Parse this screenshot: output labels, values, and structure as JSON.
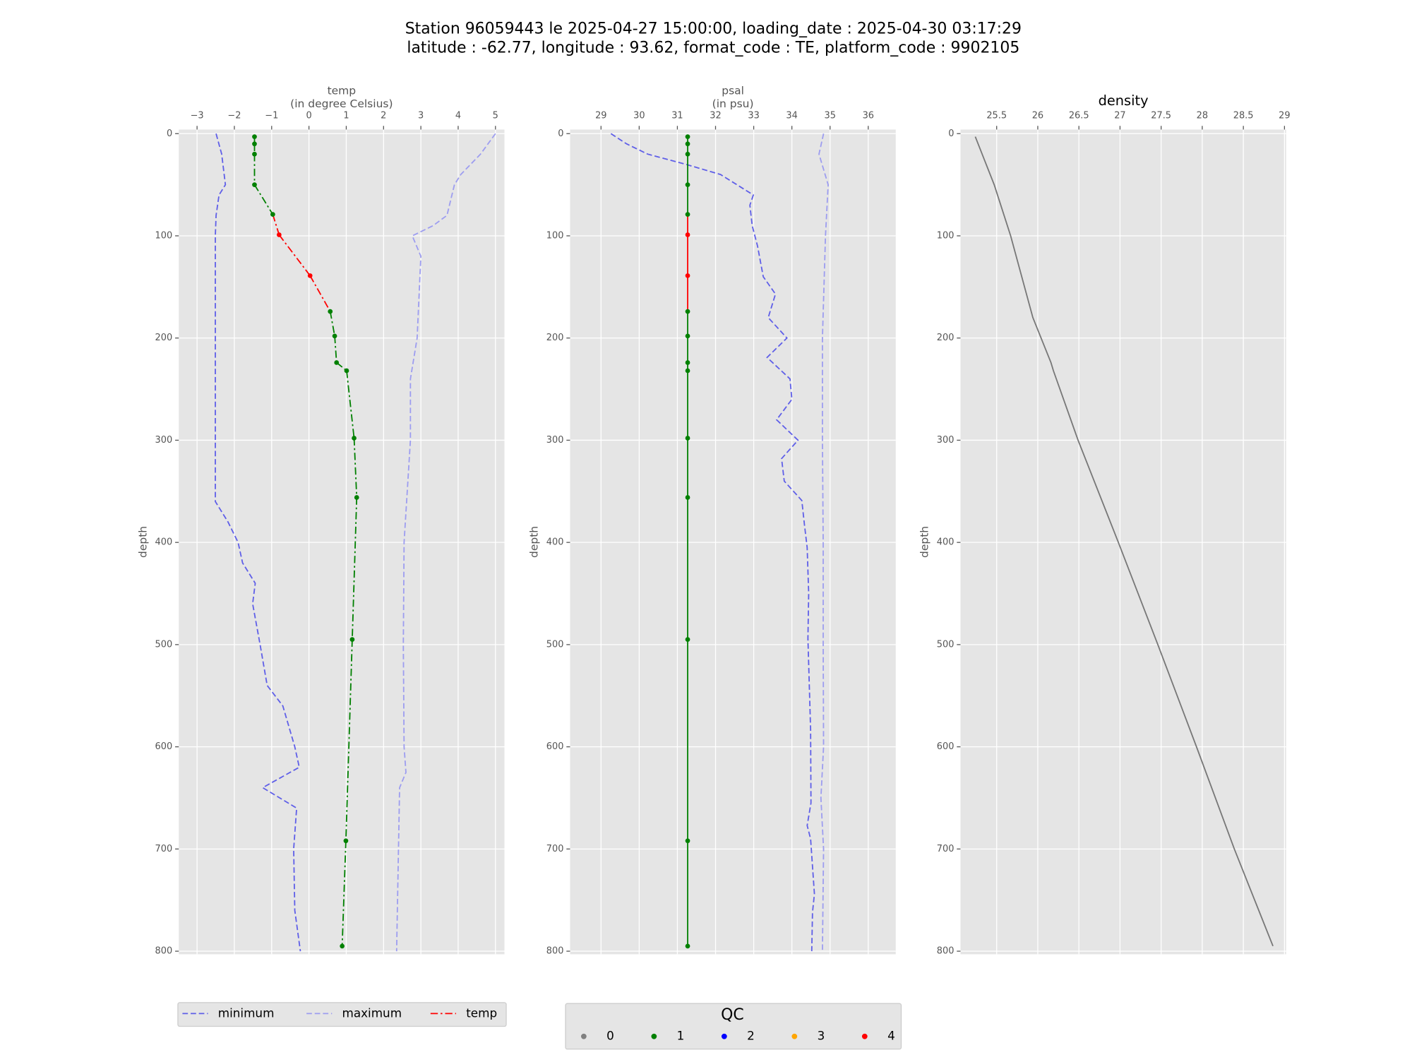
{
  "title": [
    "Station 96059443 le 2025-04-27 15:00:00, loading_date : 2025-04-30 03:17:29",
    "latitude : -62.77, longitude : 93.62, format_code : TE, platform_code : 9902105"
  ],
  "chart_data": [
    {
      "type": "profile",
      "xlabel": [
        "temp",
        "(in degree Celsius)"
      ],
      "ylabel": "depth",
      "xlim": [
        -3.49,
        5.24
      ],
      "xticks": [
        {
          "value": -3,
          "label": "−3"
        },
        {
          "value": -2,
          "label": "−2"
        },
        {
          "value": -1,
          "label": "−1"
        },
        0,
        1,
        2,
        3,
        4,
        5
      ],
      "ylim": [
        -4,
        803
      ],
      "yticks": [
        0,
        100,
        200,
        300,
        400,
        500,
        600,
        700,
        800
      ],
      "inverted_y": true,
      "grid": true,
      "legend": "below",
      "series": [
        {
          "name": "minimum",
          "color": "#5f5fe8",
          "style": "dashed",
          "depth": [
            0,
            20,
            50,
            60,
            80,
            100,
            200,
            300,
            360,
            380,
            400,
            420,
            440,
            460,
            500,
            540,
            560,
            600,
            620,
            640,
            660,
            700,
            760,
            800
          ],
          "values": [
            -2.49,
            -2.34,
            -2.24,
            -2.41,
            -2.49,
            -2.51,
            -2.51,
            -2.51,
            -2.51,
            -2.17,
            -1.9,
            -1.78,
            -1.44,
            -1.51,
            -1.31,
            -1.12,
            -0.7,
            -0.38,
            -0.26,
            -1.24,
            -0.33,
            -0.41,
            -0.38,
            -0.23
          ]
        },
        {
          "name": "maximum",
          "color": "#9d9df0",
          "style": "dashed",
          "depth": [
            0,
            20,
            40,
            50,
            80,
            90,
            100,
            120,
            200,
            240,
            300,
            400,
            500,
            600,
            625,
            640,
            700,
            800
          ],
          "values": [
            5.0,
            4.6,
            4.07,
            3.9,
            3.7,
            3.33,
            2.77,
            3.0,
            2.9,
            2.72,
            2.72,
            2.55,
            2.53,
            2.55,
            2.6,
            2.43,
            2.4,
            2.35
          ]
        },
        {
          "name": "temp",
          "color": "#ff0000",
          "style": "dashdot",
          "depth": [
            3,
            10,
            20,
            50,
            79,
            99,
            139,
            174,
            198,
            224,
            232,
            298,
            356,
            495,
            692,
            795
          ],
          "values": [
            -1.46,
            -1.46,
            -1.46,
            -1.46,
            -0.97,
            -0.8,
            0.03,
            0.57,
            0.69,
            0.74,
            1.01,
            1.21,
            1.28,
            1.16,
            0.99,
            0.89
          ],
          "qc": [
            1,
            1,
            1,
            1,
            1,
            4,
            4,
            1,
            1,
            1,
            1,
            1,
            1,
            1,
            1,
            1
          ]
        }
      ]
    },
    {
      "type": "profile",
      "xlabel": [
        "psal",
        "(in psu)"
      ],
      "ylabel": "depth",
      "xlim": [
        28.19,
        36.72
      ],
      "xticks": [
        29,
        30,
        31,
        32,
        33,
        34,
        35,
        36
      ],
      "ylim": [
        -4,
        803
      ],
      "yticks": [
        0,
        100,
        200,
        300,
        400,
        500,
        600,
        700,
        800
      ],
      "inverted_y": true,
      "grid": true,
      "series": [
        {
          "color": "#5f5fe8",
          "style": "dashed",
          "depth": [
            0,
            10,
            20,
            30,
            40,
            60,
            70,
            90,
            110,
            140,
            157,
            180,
            200,
            219,
            240,
            260,
            280,
            300,
            318,
            340,
            359,
            383,
            405,
            450,
            494,
            583,
            655,
            677,
            690,
            717,
            744,
            762,
            800
          ],
          "values": [
            29.26,
            29.67,
            30.22,
            31.22,
            32.13,
            32.99,
            32.9,
            32.96,
            33.1,
            33.25,
            33.57,
            33.38,
            33.87,
            33.35,
            33.95,
            34.0,
            33.6,
            34.16,
            33.73,
            33.8,
            34.26,
            34.33,
            34.4,
            34.44,
            34.42,
            34.49,
            34.5,
            34.4,
            34.49,
            34.54,
            34.59,
            34.54,
            34.52
          ]
        },
        {
          "color": "#9d9df0",
          "style": "dashed",
          "depth": [
            0,
            20,
            50,
            100,
            200,
            300,
            400,
            500,
            600,
            650,
            700,
            800
          ],
          "values": [
            34.83,
            34.71,
            34.95,
            34.88,
            34.8,
            34.8,
            34.82,
            34.82,
            34.83,
            34.76,
            34.83,
            34.8
          ]
        },
        {
          "color": "#008000",
          "style": "solid",
          "depth": [
            3,
            10,
            20,
            50,
            79,
            99,
            139,
            174,
            198,
            224,
            232,
            298,
            356,
            495,
            692,
            795
          ],
          "values": [
            31.27,
            31.27,
            31.27,
            31.27,
            31.27,
            31.27,
            31.27,
            31.27,
            31.27,
            31.27,
            31.27,
            31.27,
            31.27,
            31.27,
            31.27,
            31.27
          ],
          "qc": [
            1,
            1,
            1,
            1,
            1,
            4,
            4,
            1,
            1,
            1,
            1,
            1,
            1,
            1,
            1,
            1
          ]
        }
      ]
    },
    {
      "type": "profile",
      "title": "density",
      "ylabel": "depth",
      "xlim": [
        25.06,
        29.02
      ],
      "xticks": [
        25.5,
        26.0,
        26.5,
        27.0,
        27.5,
        28.0,
        28.5,
        29.0
      ],
      "ylim": [
        -4,
        803
      ],
      "yticks": [
        0,
        100,
        200,
        300,
        400,
        500,
        600,
        700,
        800
      ],
      "inverted_y": true,
      "grid": true,
      "series": [
        {
          "color": "#777777",
          "style": "solid",
          "depth": [
            3,
            50,
            100,
            180,
            224,
            232,
            300,
            400,
            500,
            600,
            700,
            795
          ],
          "values": [
            25.24,
            25.47,
            25.67,
            25.94,
            26.16,
            26.19,
            26.49,
            26.98,
            27.46,
            27.93,
            28.39,
            28.86
          ]
        }
      ]
    }
  ],
  "qc_legend": {
    "title": "QC",
    "labels": [
      0,
      1,
      2,
      3,
      4
    ],
    "colors": [
      "#808080",
      "#008000",
      "#0000ff",
      "#ffa500",
      "#ff0000"
    ]
  }
}
